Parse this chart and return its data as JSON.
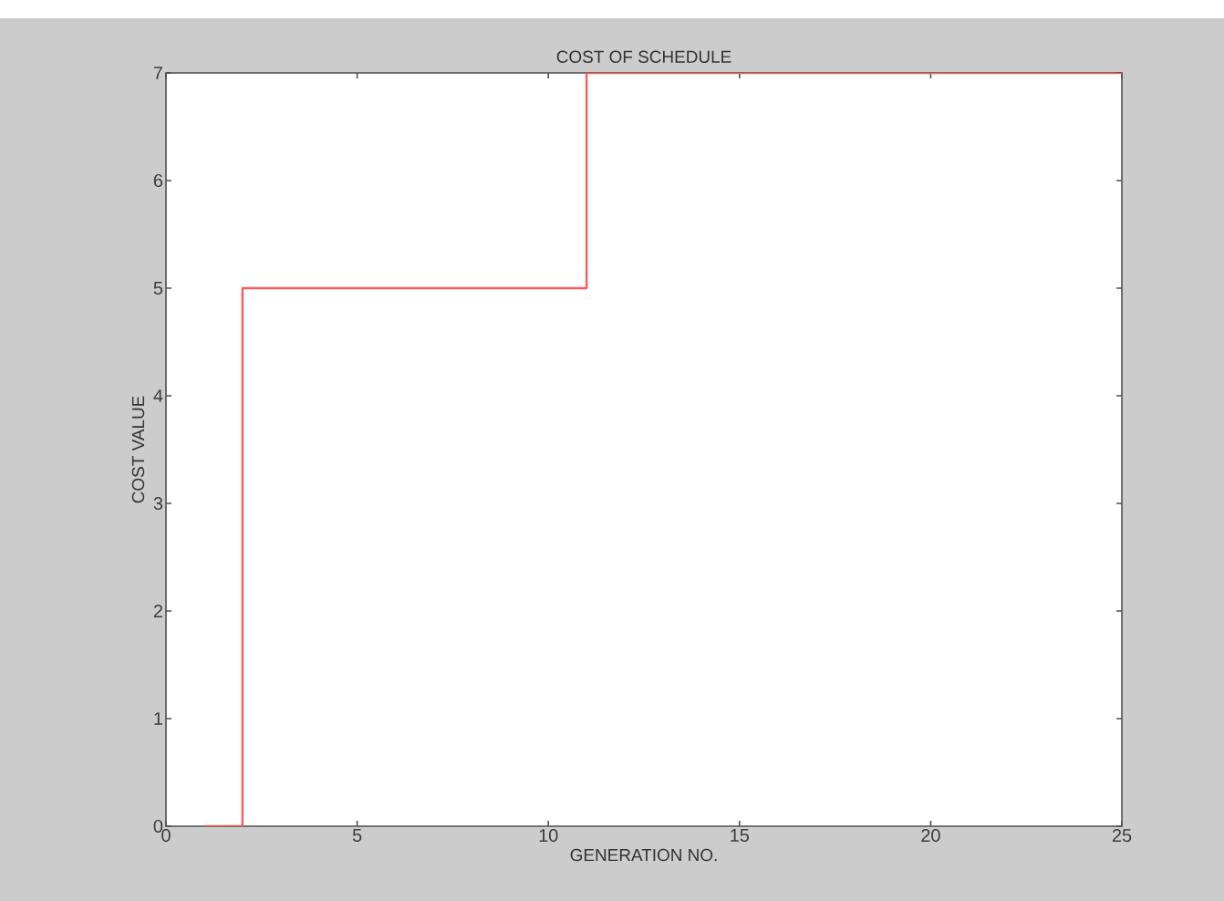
{
  "chart_data": {
    "type": "step",
    "title": "COST OF SCHEDULE",
    "xlabel": "GENERATION NO.",
    "ylabel": "COST VALUE",
    "x": [
      1,
      2,
      11,
      25
    ],
    "series": [
      {
        "color": "#ff5a5a",
        "values": [
          0,
          5,
          7,
          7
        ]
      }
    ],
    "xlim": [
      0,
      25
    ],
    "ylim": [
      0,
      7
    ],
    "xticks": [
      0,
      5,
      10,
      15,
      20,
      25
    ],
    "yticks": [
      0,
      1,
      2,
      3,
      4,
      5,
      6,
      7
    ],
    "grid": false,
    "line_style": "solid",
    "marker": "none"
  }
}
